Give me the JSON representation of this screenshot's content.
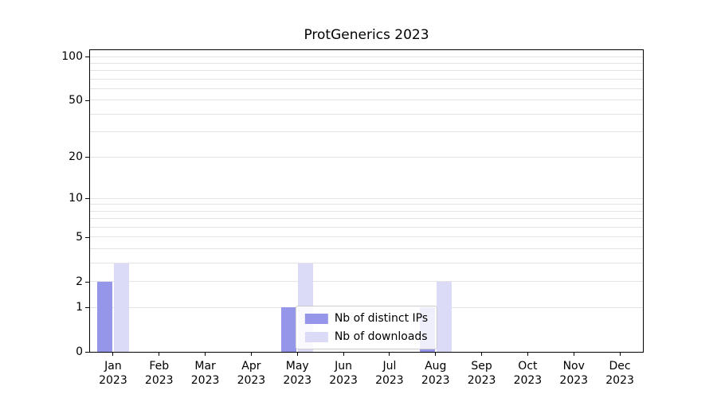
{
  "chart_data": {
    "type": "bar",
    "title": "ProtGenerics 2023",
    "categories": [
      "Jan",
      "Feb",
      "Mar",
      "Apr",
      "May",
      "Jun",
      "Jul",
      "Aug",
      "Sep",
      "Oct",
      "Nov",
      "Dec"
    ],
    "category_year": "2023",
    "series": [
      {
        "name": "Nb of distinct IPs",
        "color": "#9595ea",
        "values": [
          2,
          0,
          0,
          0,
          1,
          0,
          0,
          1,
          0,
          0,
          0,
          0
        ]
      },
      {
        "name": "Nb of downloads",
        "color": "#dbdbf7",
        "values": [
          3,
          0,
          0,
          0,
          3,
          0,
          0,
          2,
          0,
          0,
          0,
          0
        ]
      }
    ],
    "xlabel": "",
    "ylabel": "",
    "scale": "log1p",
    "ymax": 100,
    "ylim": [
      0,
      110
    ],
    "yticks": [
      0,
      1,
      2,
      5,
      10,
      20,
      50,
      100
    ],
    "gridlines": [
      1,
      2,
      3,
      4,
      5,
      6,
      7,
      8,
      9,
      10,
      20,
      30,
      40,
      50,
      60,
      70,
      80,
      90,
      100
    ],
    "grid": true,
    "legend_position": "lower center"
  }
}
